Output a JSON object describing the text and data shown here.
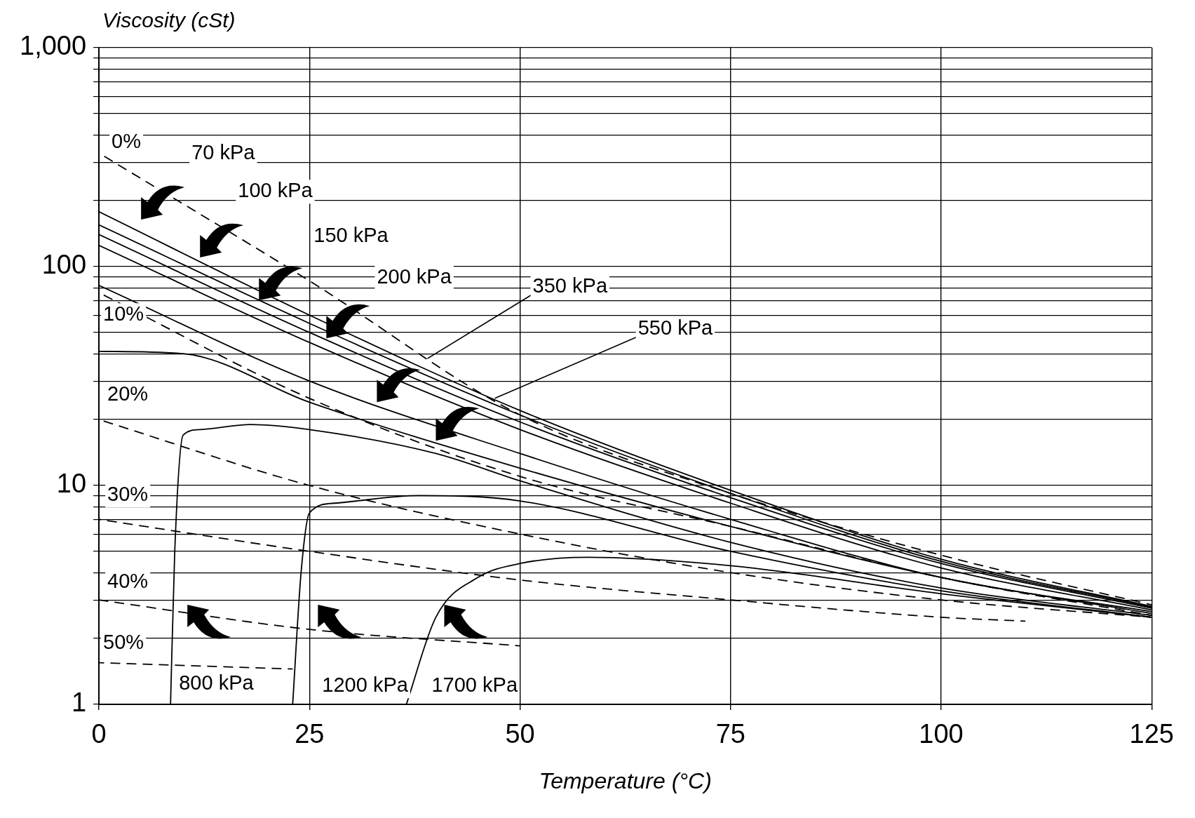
{
  "chart_data": {
    "type": "line",
    "xlabel": "Temperature (°C)",
    "ylabel": "Viscosity (cSt)",
    "xlim": [
      0,
      125
    ],
    "xticks": [
      0,
      25,
      50,
      75,
      100,
      125
    ],
    "ylim": [
      1,
      1000
    ],
    "log": "y",
    "grid": true,
    "legend": false,
    "yticks": [
      1,
      {
        "value": 2,
        "label": null
      },
      {
        "value": 3,
        "label": null
      },
      {
        "value": 4,
        "label": null
      },
      {
        "value": 5,
        "label": null
      },
      {
        "value": 6,
        "label": null
      },
      {
        "value": 7,
        "label": null
      },
      {
        "value": 8,
        "label": null
      },
      {
        "value": 9,
        "label": null
      },
      10,
      {
        "value": 20,
        "label": null
      },
      {
        "value": 30,
        "label": null
      },
      {
        "value": 40,
        "label": null
      },
      {
        "value": 50,
        "label": null
      },
      {
        "value": 60,
        "label": null
      },
      {
        "value": 70,
        "label": null
      },
      {
        "value": 80,
        "label": null
      },
      {
        "value": 90,
        "label": null
      },
      100,
      {
        "value": 200,
        "label": null
      },
      {
        "value": 300,
        "label": null
      },
      {
        "value": 400,
        "label": null
      },
      {
        "value": 500,
        "label": null
      },
      {
        "value": 600,
        "label": null
      },
      {
        "value": 700,
        "label": null
      },
      {
        "value": 800,
        "label": null
      },
      {
        "value": 900,
        "label": null
      },
      {
        "value": 1000,
        "label": "1,000"
      }
    ],
    "series": [
      {
        "color": "#000000",
        "line_style": "dashed",
        "x": [
          0,
          25,
          50,
          75,
          100,
          125
        ],
        "values": [
          330,
          86,
          21,
          9.2,
          4.8,
          2.85
        ]
      },
      {
        "color": "#000000",
        "line_style": "dashed",
        "x": [
          0,
          25,
          50,
          75,
          100,
          125
        ],
        "values": [
          76,
          25,
          11,
          6.5,
          3.8,
          2.55
        ]
      },
      {
        "color": "#000000",
        "line_style": "dashed",
        "x": [
          0,
          25,
          50,
          75,
          100,
          125
        ],
        "values": [
          20,
          10,
          6,
          4,
          3,
          2.5
        ]
      },
      {
        "color": "#000000",
        "line_style": "dashed",
        "x": [
          0,
          25,
          50,
          75,
          100,
          110
        ],
        "values": [
          7,
          5,
          3.7,
          3,
          2.5,
          2.4
        ]
      },
      {
        "color": "#000000",
        "line_style": "dashed",
        "x": [
          0,
          25,
          50
        ],
        "values": [
          3,
          2.2,
          1.85
        ]
      },
      {
        "color": "#000000",
        "line_style": "dashed",
        "x": [
          0,
          23
        ],
        "values": [
          1.55,
          1.45
        ]
      },
      {
        "color": "#000000",
        "line_style": "solid",
        "x": [
          0,
          25,
          50,
          75,
          100,
          125
        ],
        "values": [
          178,
          60,
          22,
          9.5,
          4.6,
          2.8
        ]
      },
      {
        "color": "#000000",
        "line_style": "solid",
        "x": [
          0,
          25,
          50,
          75,
          100,
          125
        ],
        "values": [
          155,
          55,
          21,
          9.2,
          4.5,
          2.78
        ]
      },
      {
        "color": "#000000",
        "line_style": "solid",
        "x": [
          0,
          25,
          50,
          75,
          100,
          125
        ],
        "values": [
          140,
          50,
          19.5,
          8.8,
          4.4,
          2.75
        ]
      },
      {
        "color": "#000000",
        "line_style": "solid",
        "x": [
          0,
          25,
          50,
          75,
          100,
          125
        ],
        "values": [
          125,
          45,
          18,
          8.3,
          4.2,
          2.7
        ]
      },
      {
        "color": "#000000",
        "line_style": "solid",
        "x": [
          0,
          25,
          50,
          75,
          100,
          125
        ],
        "values": [
          82,
          30,
          14,
          7,
          3.8,
          2.65
        ]
      },
      {
        "color": "#000000",
        "line_style": "solid",
        "x": [
          0,
          10,
          25,
          50,
          75,
          100,
          125
        ],
        "values": [
          41,
          40,
          24,
          12,
          6.5,
          3.8,
          2.6
        ]
      },
      {
        "color": "#000000",
        "line_style": "solid",
        "x": [
          8.5,
          9,
          10,
          12,
          18,
          25,
          40,
          50,
          75,
          100,
          125
        ],
        "values": [
          1,
          5,
          17,
          18,
          19,
          18,
          14,
          10.5,
          5.5,
          3.4,
          2.55
        ]
      },
      {
        "color": "#000000",
        "line_style": "solid",
        "x": [
          23,
          24,
          25,
          28,
          38,
          50,
          75,
          100,
          125
        ],
        "values": [
          1,
          4,
          7.5,
          8.3,
          9,
          8.5,
          5,
          3.3,
          2.5
        ]
      },
      {
        "color": "#000000",
        "line_style": "solid",
        "x": [
          36.5,
          40,
          45,
          50,
          58,
          75,
          100,
          125
        ],
        "values": [
          1,
          2.5,
          3.8,
          4.4,
          4.7,
          4.3,
          3.2,
          2.5
        ]
      }
    ],
    "annotations": [
      "0%",
      "70 kPa",
      "100 kPa",
      "150 kPa",
      "200 kPa",
      {
        "text": "350 kPa",
        "x": 39,
        "y": 38
      },
      {
        "text": "550 kPa",
        "x": 47,
        "y": 25
      },
      "10%",
      "20%",
      "30%",
      "40%",
      "50%",
      "800 kPa",
      "1200 kPa",
      "1700 kPa"
    ]
  }
}
